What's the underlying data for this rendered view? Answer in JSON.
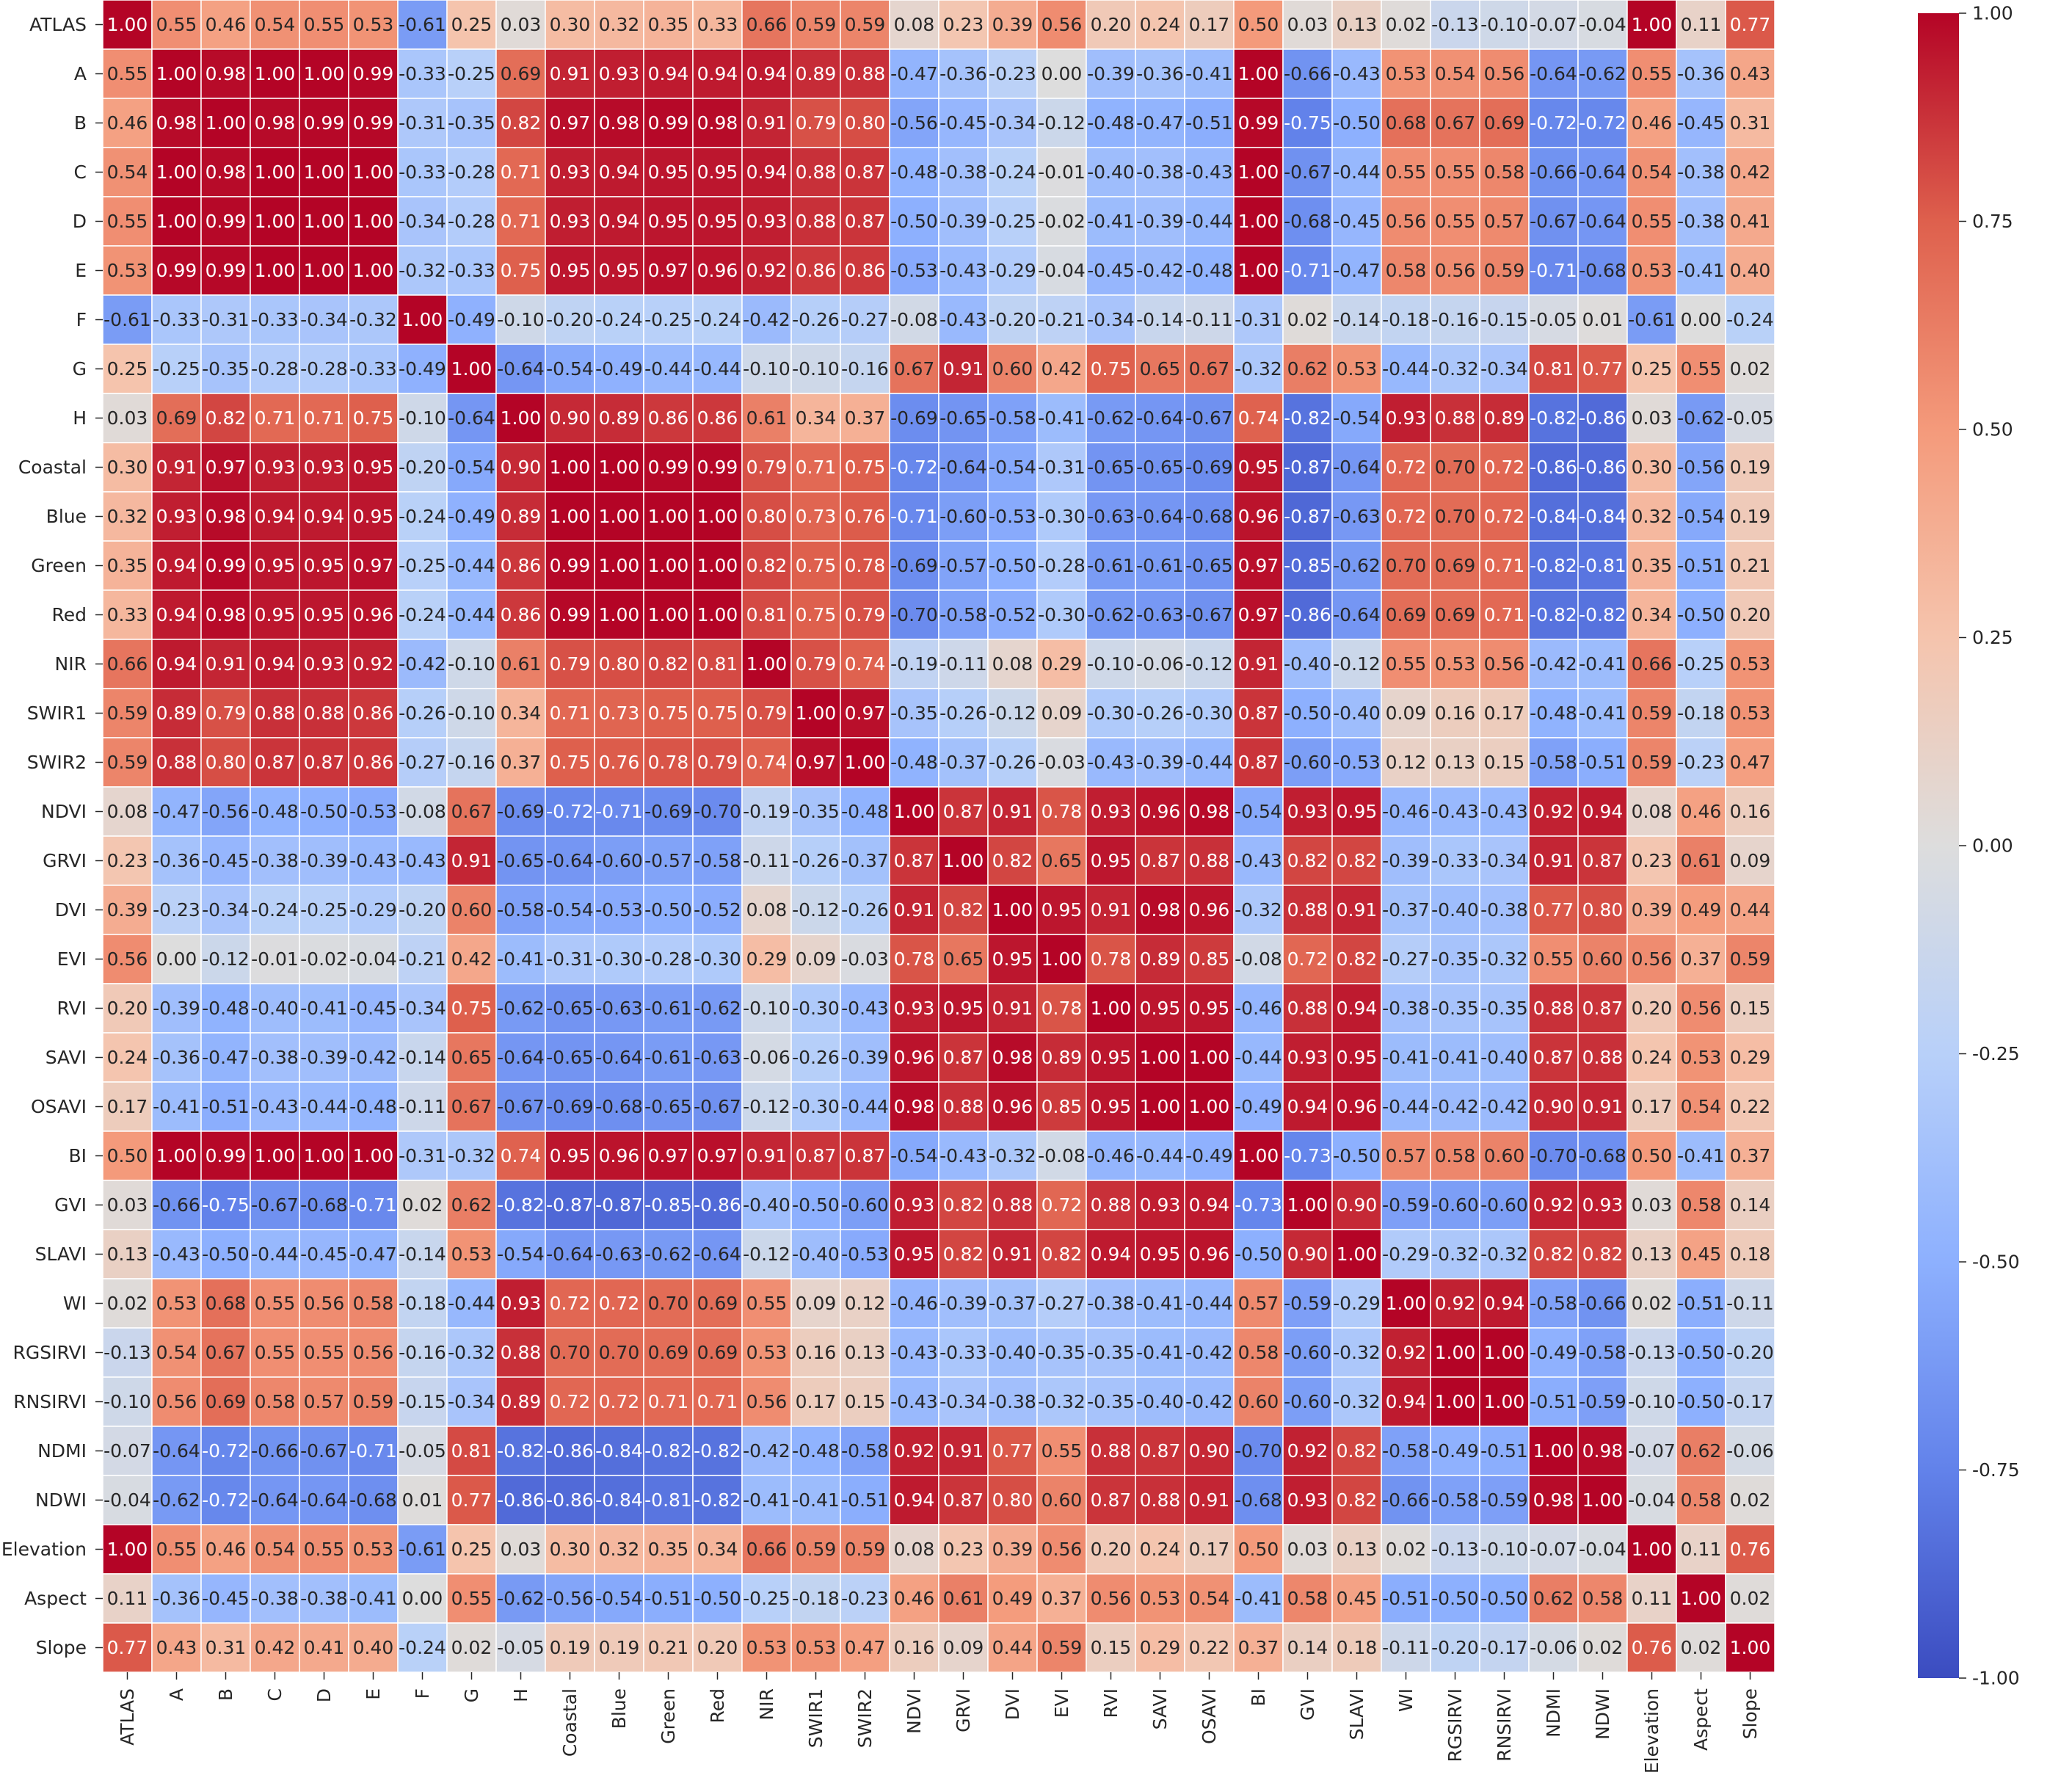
{
  "chart_data": {
    "type": "heatmap",
    "title": "",
    "labels": [
      "ATLAS",
      "A",
      "B",
      "C",
      "D",
      "E",
      "F",
      "G",
      "H",
      "Coastal",
      "Blue",
      "Green",
      "Red",
      "NIR",
      "SWIR1",
      "SWIR2",
      "NDVI",
      "GRVI",
      "DVI",
      "EVI",
      "RVI",
      "SAVI",
      "OSAVI",
      "BI",
      "GVI",
      "SLAVI",
      "WI",
      "RGSIRVI",
      "RNSIRVI",
      "NDMI",
      "NDWI",
      "Elevation",
      "Aspect",
      "Slope"
    ],
    "matrix": [
      [
        1.0,
        0.55,
        0.46,
        0.54,
        0.55,
        0.53,
        -0.61,
        0.25,
        0.03,
        0.3,
        0.32,
        0.35,
        0.33,
        0.66,
        0.59,
        0.59,
        0.08,
        0.23,
        0.39,
        0.56,
        0.2,
        0.24,
        0.17,
        0.5,
        0.03,
        0.13,
        0.02,
        -0.13,
        -0.1,
        -0.07,
        -0.04,
        1.0,
        0.11,
        0.77
      ],
      [
        0.55,
        1.0,
        0.98,
        1.0,
        1.0,
        0.99,
        -0.33,
        -0.25,
        0.69,
        0.91,
        0.93,
        0.94,
        0.94,
        0.94,
        0.89,
        0.88,
        -0.47,
        -0.36,
        -0.23,
        0.0,
        -0.39,
        -0.36,
        -0.41,
        1.0,
        -0.66,
        -0.43,
        0.53,
        0.54,
        0.56,
        -0.64,
        -0.62,
        0.55,
        -0.36,
        0.43
      ],
      [
        0.46,
        0.98,
        1.0,
        0.98,
        0.99,
        0.99,
        -0.31,
        -0.35,
        0.82,
        0.97,
        0.98,
        0.99,
        0.98,
        0.91,
        0.79,
        0.8,
        -0.56,
        -0.45,
        -0.34,
        -0.12,
        -0.48,
        -0.47,
        -0.51,
        0.99,
        -0.75,
        -0.5,
        0.68,
        0.67,
        0.69,
        -0.72,
        -0.72,
        0.46,
        -0.45,
        0.31
      ],
      [
        0.54,
        1.0,
        0.98,
        1.0,
        1.0,
        1.0,
        -0.33,
        -0.28,
        0.71,
        0.93,
        0.94,
        0.95,
        0.95,
        0.94,
        0.88,
        0.87,
        -0.48,
        -0.38,
        -0.24,
        -0.01,
        -0.4,
        -0.38,
        -0.43,
        1.0,
        -0.67,
        -0.44,
        0.55,
        0.55,
        0.58,
        -0.66,
        -0.64,
        0.54,
        -0.38,
        0.42
      ],
      [
        0.55,
        1.0,
        0.99,
        1.0,
        1.0,
        1.0,
        -0.34,
        -0.28,
        0.71,
        0.93,
        0.94,
        0.95,
        0.95,
        0.93,
        0.88,
        0.87,
        -0.5,
        -0.39,
        -0.25,
        -0.02,
        -0.41,
        -0.39,
        -0.44,
        1.0,
        -0.68,
        -0.45,
        0.56,
        0.55,
        0.57,
        -0.67,
        -0.64,
        0.55,
        -0.38,
        0.41
      ],
      [
        0.53,
        0.99,
        0.99,
        1.0,
        1.0,
        1.0,
        -0.32,
        -0.33,
        0.75,
        0.95,
        0.95,
        0.97,
        0.96,
        0.92,
        0.86,
        0.86,
        -0.53,
        -0.43,
        -0.29,
        -0.04,
        -0.45,
        -0.42,
        -0.48,
        1.0,
        -0.71,
        -0.47,
        0.58,
        0.56,
        0.59,
        -0.71,
        -0.68,
        0.53,
        -0.41,
        0.4
      ],
      [
        -0.61,
        -0.33,
        -0.31,
        -0.33,
        -0.34,
        -0.32,
        1.0,
        -0.49,
        -0.1,
        -0.2,
        -0.24,
        -0.25,
        -0.24,
        -0.42,
        -0.26,
        -0.27,
        -0.08,
        -0.43,
        -0.2,
        -0.21,
        -0.34,
        -0.14,
        -0.11,
        -0.31,
        0.02,
        -0.14,
        -0.18,
        -0.16,
        -0.15,
        -0.05,
        0.01,
        -0.61,
        0.0,
        -0.24
      ],
      [
        0.25,
        -0.25,
        -0.35,
        -0.28,
        -0.28,
        -0.33,
        -0.49,
        1.0,
        -0.64,
        -0.54,
        -0.49,
        -0.44,
        -0.44,
        -0.1,
        -0.1,
        -0.16,
        0.67,
        0.91,
        0.6,
        0.42,
        0.75,
        0.65,
        0.67,
        -0.32,
        0.62,
        0.53,
        -0.44,
        -0.32,
        -0.34,
        0.81,
        0.77,
        0.25,
        0.55,
        0.02
      ],
      [
        0.03,
        0.69,
        0.82,
        0.71,
        0.71,
        0.75,
        -0.1,
        -0.64,
        1.0,
        0.9,
        0.89,
        0.86,
        0.86,
        0.61,
        0.34,
        0.37,
        -0.69,
        -0.65,
        -0.58,
        -0.41,
        -0.62,
        -0.64,
        -0.67,
        0.74,
        -0.82,
        -0.54,
        0.93,
        0.88,
        0.89,
        -0.82,
        -0.86,
        0.03,
        -0.62,
        -0.05
      ],
      [
        0.3,
        0.91,
        0.97,
        0.93,
        0.93,
        0.95,
        -0.2,
        -0.54,
        0.9,
        1.0,
        1.0,
        0.99,
        0.99,
        0.79,
        0.71,
        0.75,
        -0.72,
        -0.64,
        -0.54,
        -0.31,
        -0.65,
        -0.65,
        -0.69,
        0.95,
        -0.87,
        -0.64,
        0.72,
        0.7,
        0.72,
        -0.86,
        -0.86,
        0.3,
        -0.56,
        0.19
      ],
      [
        0.32,
        0.93,
        0.98,
        0.94,
        0.94,
        0.95,
        -0.24,
        -0.49,
        0.89,
        1.0,
        1.0,
        1.0,
        1.0,
        0.8,
        0.73,
        0.76,
        -0.71,
        -0.6,
        -0.53,
        -0.3,
        -0.63,
        -0.64,
        -0.68,
        0.96,
        -0.87,
        -0.63,
        0.72,
        0.7,
        0.72,
        -0.84,
        -0.84,
        0.32,
        -0.54,
        0.19
      ],
      [
        0.35,
        0.94,
        0.99,
        0.95,
        0.95,
        0.97,
        -0.25,
        -0.44,
        0.86,
        0.99,
        1.0,
        1.0,
        1.0,
        0.82,
        0.75,
        0.78,
        -0.69,
        -0.57,
        -0.5,
        -0.28,
        -0.61,
        -0.61,
        -0.65,
        0.97,
        -0.85,
        -0.62,
        0.7,
        0.69,
        0.71,
        -0.82,
        -0.81,
        0.35,
        -0.51,
        0.21
      ],
      [
        0.33,
        0.94,
        0.98,
        0.95,
        0.95,
        0.96,
        -0.24,
        -0.44,
        0.86,
        0.99,
        1.0,
        1.0,
        1.0,
        0.81,
        0.75,
        0.79,
        -0.7,
        -0.58,
        -0.52,
        -0.3,
        -0.62,
        -0.63,
        -0.67,
        0.97,
        -0.86,
        -0.64,
        0.69,
        0.69,
        0.71,
        -0.82,
        -0.82,
        0.34,
        -0.5,
        0.2
      ],
      [
        0.66,
        0.94,
        0.91,
        0.94,
        0.93,
        0.92,
        -0.42,
        -0.1,
        0.61,
        0.79,
        0.8,
        0.82,
        0.81,
        1.0,
        0.79,
        0.74,
        -0.19,
        -0.11,
        0.08,
        0.29,
        -0.1,
        -0.06,
        -0.12,
        0.91,
        -0.4,
        -0.12,
        0.55,
        0.53,
        0.56,
        -0.42,
        -0.41,
        0.66,
        -0.25,
        0.53
      ],
      [
        0.59,
        0.89,
        0.79,
        0.88,
        0.88,
        0.86,
        -0.26,
        -0.1,
        0.34,
        0.71,
        0.73,
        0.75,
        0.75,
        0.79,
        1.0,
        0.97,
        -0.35,
        -0.26,
        -0.12,
        0.09,
        -0.3,
        -0.26,
        -0.3,
        0.87,
        -0.5,
        -0.4,
        0.09,
        0.16,
        0.17,
        -0.48,
        -0.41,
        0.59,
        -0.18,
        0.53
      ],
      [
        0.59,
        0.88,
        0.8,
        0.87,
        0.87,
        0.86,
        -0.27,
        -0.16,
        0.37,
        0.75,
        0.76,
        0.78,
        0.79,
        0.74,
        0.97,
        1.0,
        -0.48,
        -0.37,
        -0.26,
        -0.03,
        -0.43,
        -0.39,
        -0.44,
        0.87,
        -0.6,
        -0.53,
        0.12,
        0.13,
        0.15,
        -0.58,
        -0.51,
        0.59,
        -0.23,
        0.47
      ],
      [
        0.08,
        -0.47,
        -0.56,
        -0.48,
        -0.5,
        -0.53,
        -0.08,
        0.67,
        -0.69,
        -0.72,
        -0.71,
        -0.69,
        -0.7,
        -0.19,
        -0.35,
        -0.48,
        1.0,
        0.87,
        0.91,
        0.78,
        0.93,
        0.96,
        0.98,
        -0.54,
        0.93,
        0.95,
        -0.46,
        -0.43,
        -0.43,
        0.92,
        0.94,
        0.08,
        0.46,
        0.16
      ],
      [
        0.23,
        -0.36,
        -0.45,
        -0.38,
        -0.39,
        -0.43,
        -0.43,
        0.91,
        -0.65,
        -0.64,
        -0.6,
        -0.57,
        -0.58,
        -0.11,
        -0.26,
        -0.37,
        0.87,
        1.0,
        0.82,
        0.65,
        0.95,
        0.87,
        0.88,
        -0.43,
        0.82,
        0.82,
        -0.39,
        -0.33,
        -0.34,
        0.91,
        0.87,
        0.23,
        0.61,
        0.09
      ],
      [
        0.39,
        -0.23,
        -0.34,
        -0.24,
        -0.25,
        -0.29,
        -0.2,
        0.6,
        -0.58,
        -0.54,
        -0.53,
        -0.5,
        -0.52,
        0.08,
        -0.12,
        -0.26,
        0.91,
        0.82,
        1.0,
        0.95,
        0.91,
        0.98,
        0.96,
        -0.32,
        0.88,
        0.91,
        -0.37,
        -0.4,
        -0.38,
        0.77,
        0.8,
        0.39,
        0.49,
        0.44
      ],
      [
        0.56,
        0.0,
        -0.12,
        -0.01,
        -0.02,
        -0.04,
        -0.21,
        0.42,
        -0.41,
        -0.31,
        -0.3,
        -0.28,
        -0.3,
        0.29,
        0.09,
        -0.03,
        0.78,
        0.65,
        0.95,
        1.0,
        0.78,
        0.89,
        0.85,
        -0.08,
        0.72,
        0.82,
        -0.27,
        -0.35,
        -0.32,
        0.55,
        0.6,
        0.56,
        0.37,
        0.59
      ],
      [
        0.2,
        -0.39,
        -0.48,
        -0.4,
        -0.41,
        -0.45,
        -0.34,
        0.75,
        -0.62,
        -0.65,
        -0.63,
        -0.61,
        -0.62,
        -0.1,
        -0.3,
        -0.43,
        0.93,
        0.95,
        0.91,
        0.78,
        1.0,
        0.95,
        0.95,
        -0.46,
        0.88,
        0.94,
        -0.38,
        -0.35,
        -0.35,
        0.88,
        0.87,
        0.2,
        0.56,
        0.15
      ],
      [
        0.24,
        -0.36,
        -0.47,
        -0.38,
        -0.39,
        -0.42,
        -0.14,
        0.65,
        -0.64,
        -0.65,
        -0.64,
        -0.61,
        -0.63,
        -0.06,
        -0.26,
        -0.39,
        0.96,
        0.87,
        0.98,
        0.89,
        0.95,
        1.0,
        1.0,
        -0.44,
        0.93,
        0.95,
        -0.41,
        -0.41,
        -0.4,
        0.87,
        0.88,
        0.24,
        0.53,
        0.29
      ],
      [
        0.17,
        -0.41,
        -0.51,
        -0.43,
        -0.44,
        -0.48,
        -0.11,
        0.67,
        -0.67,
        -0.69,
        -0.68,
        -0.65,
        -0.67,
        -0.12,
        -0.3,
        -0.44,
        0.98,
        0.88,
        0.96,
        0.85,
        0.95,
        1.0,
        1.0,
        -0.49,
        0.94,
        0.96,
        -0.44,
        -0.42,
        -0.42,
        0.9,
        0.91,
        0.17,
        0.54,
        0.22
      ],
      [
        0.5,
        1.0,
        0.99,
        1.0,
        1.0,
        1.0,
        -0.31,
        -0.32,
        0.74,
        0.95,
        0.96,
        0.97,
        0.97,
        0.91,
        0.87,
        0.87,
        -0.54,
        -0.43,
        -0.32,
        -0.08,
        -0.46,
        -0.44,
        -0.49,
        1.0,
        -0.73,
        -0.5,
        0.57,
        0.58,
        0.6,
        -0.7,
        -0.68,
        0.5,
        -0.41,
        0.37
      ],
      [
        0.03,
        -0.66,
        -0.75,
        -0.67,
        -0.68,
        -0.71,
        0.02,
        0.62,
        -0.82,
        -0.87,
        -0.87,
        -0.85,
        -0.86,
        -0.4,
        -0.5,
        -0.6,
        0.93,
        0.82,
        0.88,
        0.72,
        0.88,
        0.93,
        0.94,
        -0.73,
        1.0,
        0.9,
        -0.59,
        -0.6,
        -0.6,
        0.92,
        0.93,
        0.03,
        0.58,
        0.14
      ],
      [
        0.13,
        -0.43,
        -0.5,
        -0.44,
        -0.45,
        -0.47,
        -0.14,
        0.53,
        -0.54,
        -0.64,
        -0.63,
        -0.62,
        -0.64,
        -0.12,
        -0.4,
        -0.53,
        0.95,
        0.82,
        0.91,
        0.82,
        0.94,
        0.95,
        0.96,
        -0.5,
        0.9,
        1.0,
        -0.29,
        -0.32,
        -0.32,
        0.82,
        0.82,
        0.13,
        0.45,
        0.18
      ],
      [
        0.02,
        0.53,
        0.68,
        0.55,
        0.56,
        0.58,
        -0.18,
        -0.44,
        0.93,
        0.72,
        0.72,
        0.7,
        0.69,
        0.55,
        0.09,
        0.12,
        -0.46,
        -0.39,
        -0.37,
        -0.27,
        -0.38,
        -0.41,
        -0.44,
        0.57,
        -0.59,
        -0.29,
        1.0,
        0.92,
        0.94,
        -0.58,
        -0.66,
        0.02,
        -0.51,
        -0.11
      ],
      [
        -0.13,
        0.54,
        0.67,
        0.55,
        0.55,
        0.56,
        -0.16,
        -0.32,
        0.88,
        0.7,
        0.7,
        0.69,
        0.69,
        0.53,
        0.16,
        0.13,
        -0.43,
        -0.33,
        -0.4,
        -0.35,
        -0.35,
        -0.41,
        -0.42,
        0.58,
        -0.6,
        -0.32,
        0.92,
        1.0,
        1.0,
        -0.49,
        -0.58,
        -0.13,
        -0.5,
        -0.2
      ],
      [
        -0.1,
        0.56,
        0.69,
        0.58,
        0.57,
        0.59,
        -0.15,
        -0.34,
        0.89,
        0.72,
        0.72,
        0.71,
        0.71,
        0.56,
        0.17,
        0.15,
        -0.43,
        -0.34,
        -0.38,
        -0.32,
        -0.35,
        -0.4,
        -0.42,
        0.6,
        -0.6,
        -0.32,
        0.94,
        1.0,
        1.0,
        -0.51,
        -0.59,
        -0.1,
        -0.5,
        -0.17
      ],
      [
        -0.07,
        -0.64,
        -0.72,
        -0.66,
        -0.67,
        -0.71,
        -0.05,
        0.81,
        -0.82,
        -0.86,
        -0.84,
        -0.82,
        -0.82,
        -0.42,
        -0.48,
        -0.58,
        0.92,
        0.91,
        0.77,
        0.55,
        0.88,
        0.87,
        0.9,
        -0.7,
        0.92,
        0.82,
        -0.58,
        -0.49,
        -0.51,
        1.0,
        0.98,
        -0.07,
        0.62,
        -0.06
      ],
      [
        -0.04,
        -0.62,
        -0.72,
        -0.64,
        -0.64,
        -0.68,
        0.01,
        0.77,
        -0.86,
        -0.86,
        -0.84,
        -0.81,
        -0.82,
        -0.41,
        -0.41,
        -0.51,
        0.94,
        0.87,
        0.8,
        0.6,
        0.87,
        0.88,
        0.91,
        -0.68,
        0.93,
        0.82,
        -0.66,
        -0.58,
        -0.59,
        0.98,
        1.0,
        -0.04,
        0.58,
        0.02
      ],
      [
        1.0,
        0.55,
        0.46,
        0.54,
        0.55,
        0.53,
        -0.61,
        0.25,
        0.03,
        0.3,
        0.32,
        0.35,
        0.34,
        0.66,
        0.59,
        0.59,
        0.08,
        0.23,
        0.39,
        0.56,
        0.2,
        0.24,
        0.17,
        0.5,
        0.03,
        0.13,
        0.02,
        -0.13,
        -0.1,
        -0.07,
        -0.04,
        1.0,
        0.11,
        0.76
      ],
      [
        0.11,
        -0.36,
        -0.45,
        -0.38,
        -0.38,
        -0.41,
        0.0,
        0.55,
        -0.62,
        -0.56,
        -0.54,
        -0.51,
        -0.5,
        -0.25,
        -0.18,
        -0.23,
        0.46,
        0.61,
        0.49,
        0.37,
        0.56,
        0.53,
        0.54,
        -0.41,
        0.58,
        0.45,
        -0.51,
        -0.5,
        -0.5,
        0.62,
        0.58,
        0.11,
        1.0,
        0.02
      ],
      [
        0.77,
        0.43,
        0.31,
        0.42,
        0.41,
        0.4,
        -0.24,
        0.02,
        -0.05,
        0.19,
        0.19,
        0.21,
        0.2,
        0.53,
        0.53,
        0.47,
        0.16,
        0.09,
        0.44,
        0.59,
        0.15,
        0.29,
        0.22,
        0.37,
        0.14,
        0.18,
        -0.11,
        -0.2,
        -0.17,
        -0.06,
        0.02,
        0.76,
        0.02,
        1.0
      ]
    ],
    "vmin": -1.0,
    "vmax": 1.0,
    "colormap": "coolwarm",
    "colorbar_ticks": [
      "1.00",
      "0.75",
      "0.50",
      "0.25",
      "0.00",
      "-0.25",
      "-0.50",
      "-0.75",
      "-1.00"
    ],
    "colorbar_tick_values": [
      1.0,
      0.75,
      0.5,
      0.25,
      0.0,
      -0.25,
      -0.5,
      -0.75,
      -1.0
    ],
    "legend_placement": "right"
  }
}
